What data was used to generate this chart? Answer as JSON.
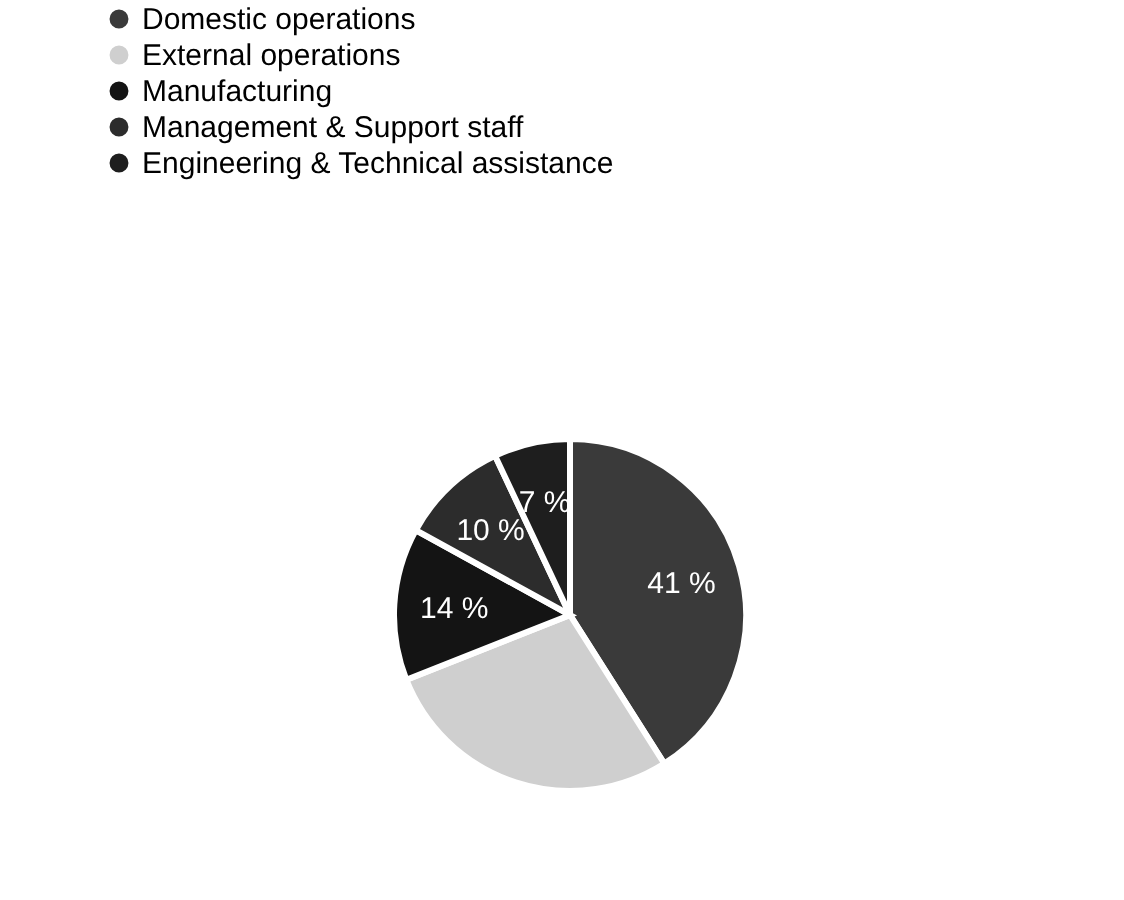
{
  "chart_data": {
    "type": "pie",
    "categories": [
      "Domestic operations",
      "External operations",
      "Manufacturing",
      "Management & Support staff",
      "Engineering & Technical assistance"
    ],
    "values": [
      41,
      28,
      14,
      10,
      7
    ],
    "value_labels": [
      "41 %",
      null,
      "14 %",
      "10 %",
      "7 %"
    ],
    "colors": [
      "#3a3a3a",
      "#cfcfcf",
      "#141414",
      "#2c2c2c",
      "#1e1e1e"
    ],
    "legend": "top left"
  }
}
